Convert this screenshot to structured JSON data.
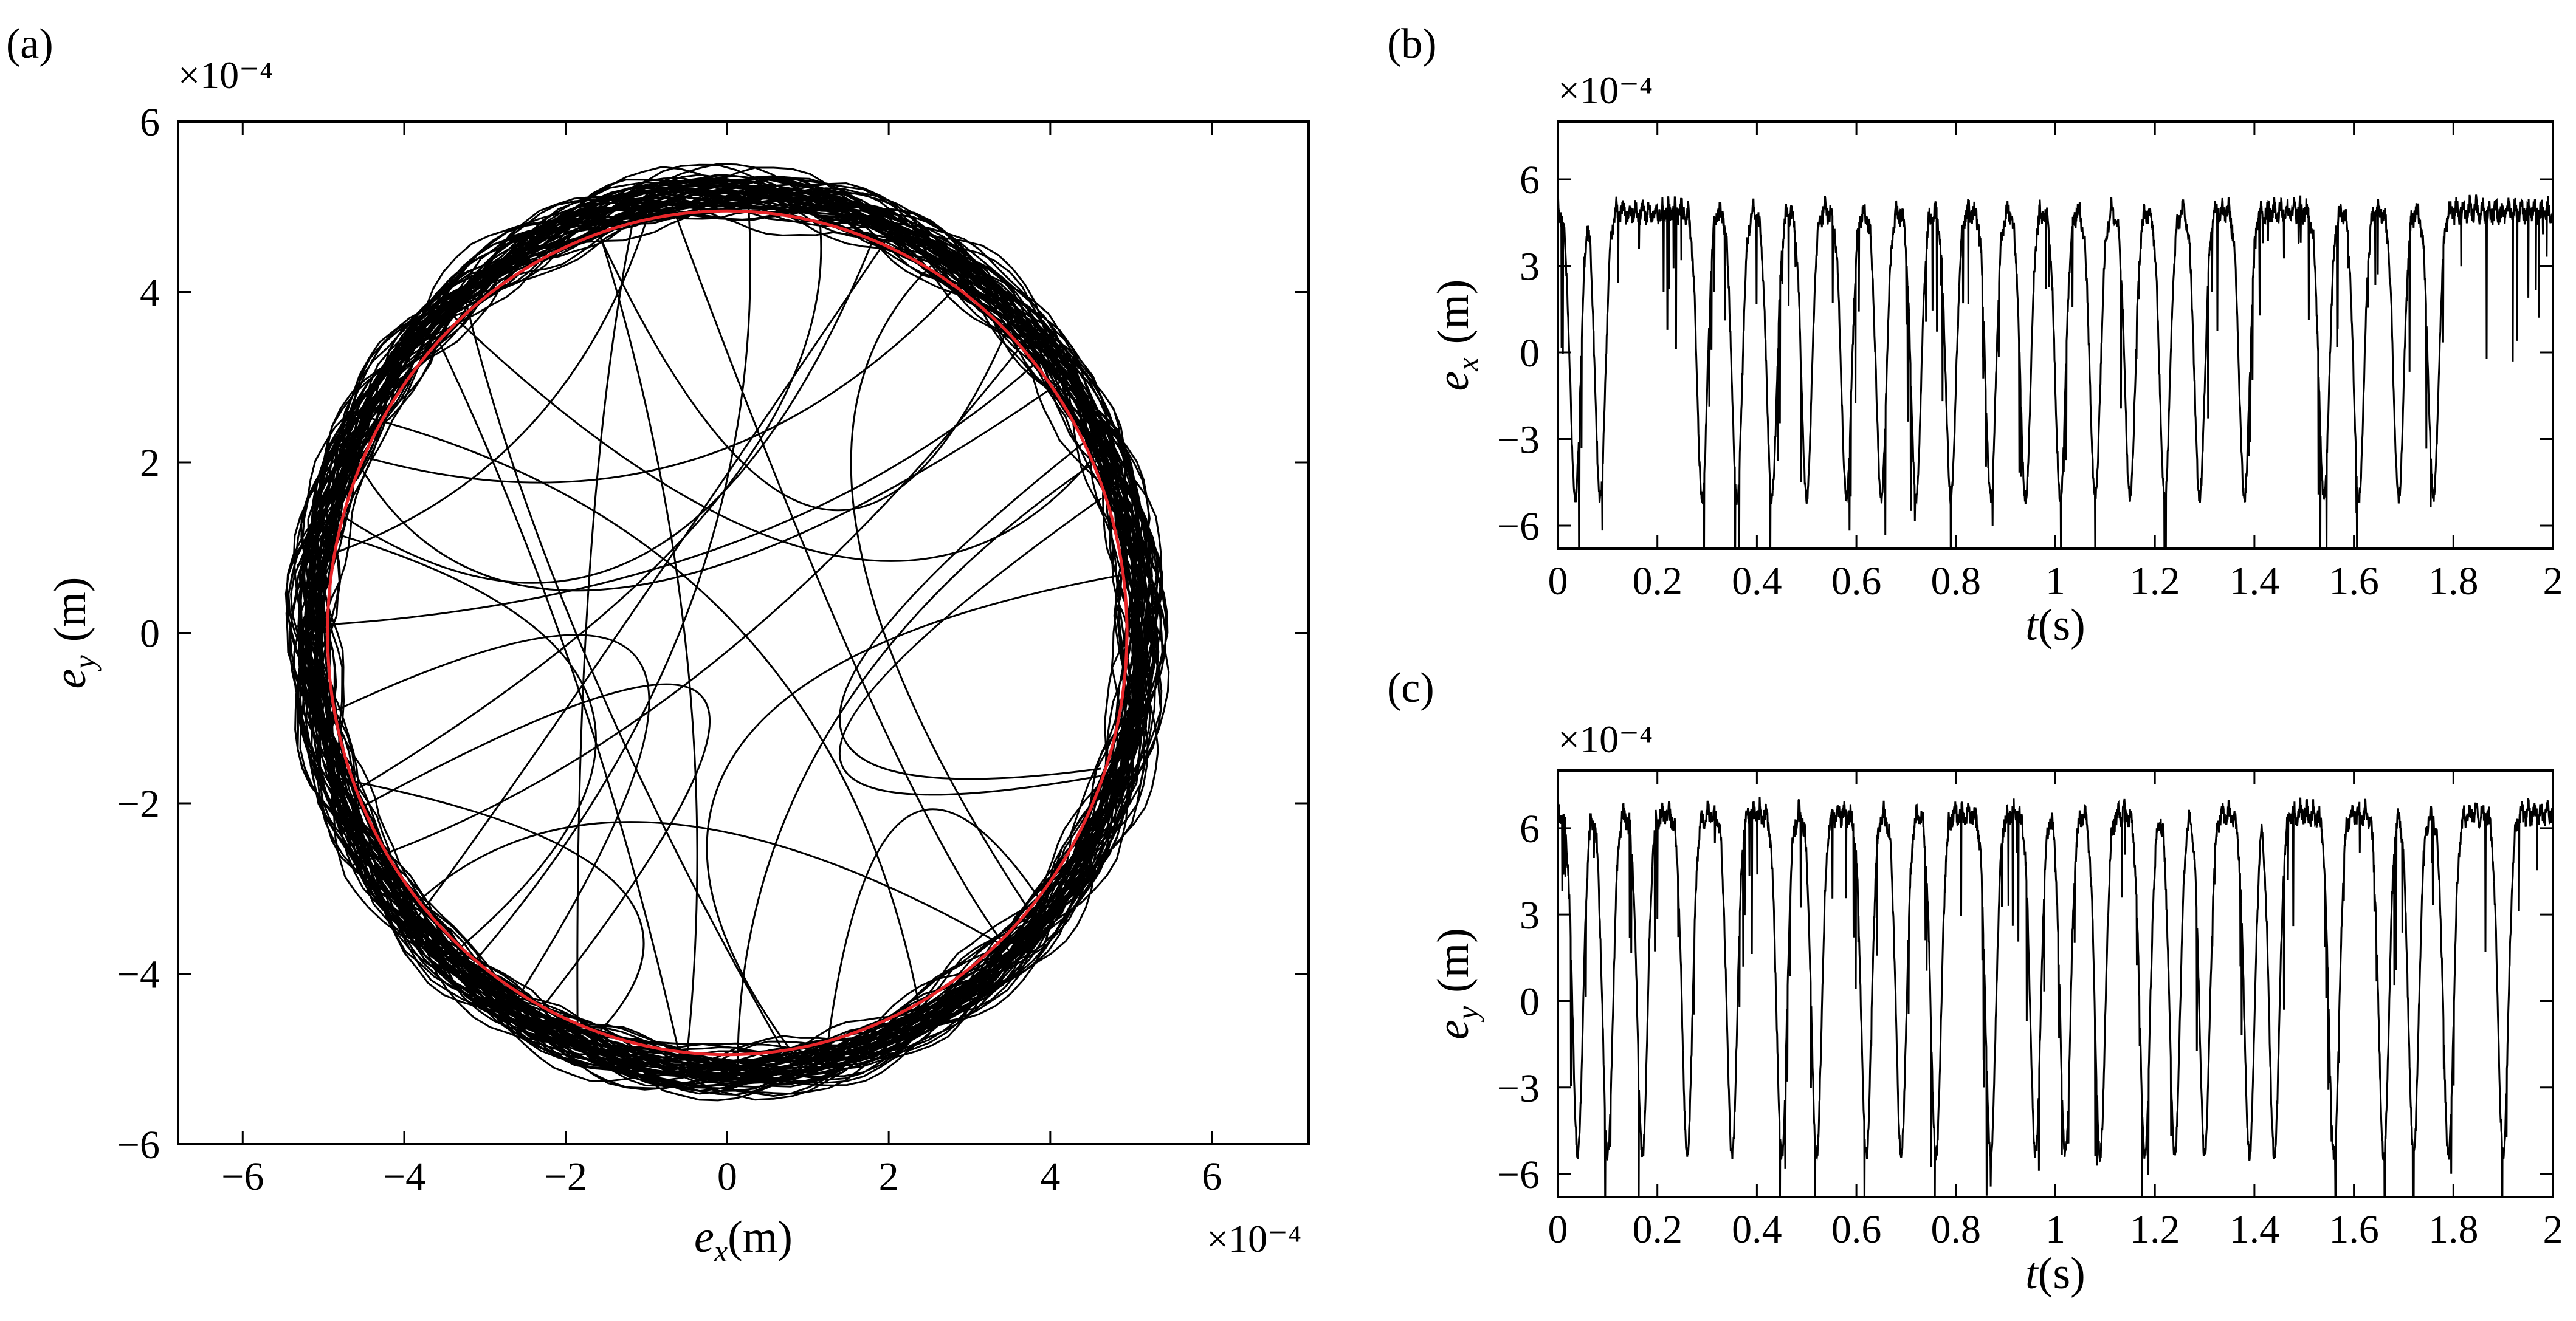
{
  "figure": {
    "panels": [
      {
        "id": "a",
        "label": "(a)"
      },
      {
        "id": "b",
        "label": "(b)"
      },
      {
        "id": "c",
        "label": "(c)"
      }
    ]
  },
  "chart_data": [
    {
      "id": "a",
      "type": "line",
      "title": "",
      "xlabel": {
        "var": "e",
        "sub": "x",
        "unit": "(m)"
      },
      "ylabel": {
        "var": "e",
        "sub": "y",
        "unit": "(m)"
      },
      "xlim": [
        -6.8,
        7.2
      ],
      "ylim": [
        -6,
        6
      ],
      "xticks": [
        -6,
        -4,
        -2,
        0,
        2,
        4,
        6
      ],
      "yticks": [
        -6,
        -4,
        -2,
        0,
        2,
        4,
        6
      ],
      "xtick_labels": [
        "−6",
        "−4",
        "−2",
        "0",
        "2",
        "4",
        "6"
      ],
      "ytick_labels": [
        "−6",
        "−4",
        "−2",
        "0",
        "2",
        "4",
        "6"
      ],
      "x_multiplier": "×10⁻⁴",
      "y_multiplier": "×10⁻⁴",
      "units_scale": 0.0001,
      "series": [
        {
          "name": "error trajectory",
          "color": "#000000",
          "kind": "noisy-circle",
          "center": [
            0,
            0
          ],
          "radius_mean": 5.15,
          "radius_spread": 0.35,
          "turns": 60,
          "stray_excursions": 28
        },
        {
          "name": "reference circle",
          "color": "#e8262a",
          "kind": "circle",
          "center": [
            0,
            0
          ],
          "radius": 4.95
        }
      ]
    },
    {
      "id": "b",
      "type": "line",
      "title": "",
      "xlabel": {
        "var": "t",
        "unit": "(s)"
      },
      "ylabel": {
        "var": "e",
        "sub": "x",
        "unit": "(m)"
      },
      "xlim": [
        0,
        2
      ],
      "ylim": [
        -6.8,
        8.0
      ],
      "xticks": [
        0,
        0.2,
        0.4,
        0.6,
        0.8,
        1,
        1.2,
        1.4,
        1.6,
        1.8,
        2
      ],
      "yticks": [
        -6,
        -3,
        0,
        3,
        6
      ],
      "xtick_labels": [
        "0",
        "0.2",
        "0.4",
        "0.6",
        "0.8",
        "1",
        "1.2",
        "1.4",
        "1.6",
        "1.8",
        "2"
      ],
      "ytick_labels": [
        "−6",
        "−3",
        "0",
        "3",
        "6"
      ],
      "y_multiplier": "×10⁻⁴",
      "series": [
        {
          "name": "e_x",
          "color": "#000000",
          "baseline": 5.2,
          "dip_times": [
            0.035,
            0.085,
            0.29,
            0.36,
            0.43,
            0.5,
            0.58,
            0.65,
            0.72,
            0.79,
            0.87,
            0.94,
            1.01,
            1.08,
            1.15,
            1.22,
            1.29,
            1.38,
            1.54,
            1.61,
            1.69,
            1.76
          ],
          "dip_min": -5.3
        }
      ]
    },
    {
      "id": "c",
      "type": "line",
      "title": "",
      "xlabel": {
        "var": "t",
        "unit": "(s)"
      },
      "ylabel": {
        "var": "e",
        "sub": "y",
        "unit": "(m)"
      },
      "xlim": [
        0,
        2
      ],
      "ylim": [
        -6.8,
        8.0
      ],
      "xticks": [
        0,
        0.2,
        0.4,
        0.6,
        0.8,
        1,
        1.2,
        1.4,
        1.6,
        1.8,
        2
      ],
      "yticks": [
        -6,
        -3,
        0,
        3,
        6
      ],
      "xtick_labels": [
        "0",
        "0.2",
        "0.4",
        "0.6",
        "0.8",
        "1",
        "1.2",
        "1.4",
        "1.6",
        "1.8",
        "2"
      ],
      "ytick_labels": [
        "−6",
        "−3",
        "0",
        "3",
        "6"
      ],
      "y_multiplier": "×10⁻⁴",
      "series": [
        {
          "name": "e_y",
          "color": "#000000",
          "baseline": 6.8,
          "dip_times": [
            0.04,
            0.1,
            0.17,
            0.26,
            0.35,
            0.45,
            0.52,
            0.62,
            0.69,
            0.76,
            0.87,
            0.96,
            1.02,
            1.09,
            1.18,
            1.24,
            1.3,
            1.39,
            1.44,
            1.56,
            1.66,
            1.72,
            1.79,
            1.9
          ],
          "dip_min": -5.6
        }
      ]
    }
  ]
}
